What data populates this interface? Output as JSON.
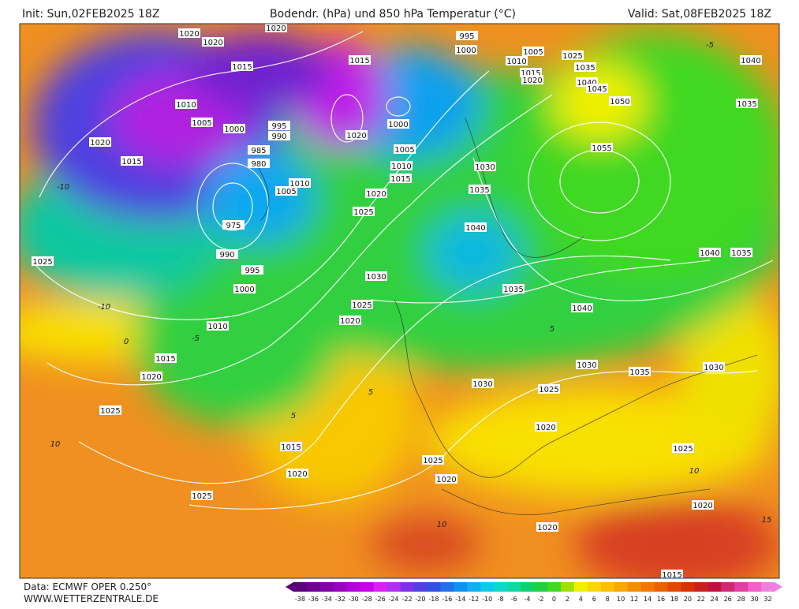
{
  "header": {
    "init": "Init: Sun,02FEB2025 18Z",
    "title": "Bodendr. (hPa) und 850 hPa Temperatur (°C)",
    "valid": "Valid: Sat,08FEB2025 18Z"
  },
  "footer": {
    "source": "Data: ECMWF OPER 0.250°",
    "site": "WWW.WETTERZENTRALE.DE"
  },
  "colorbar": {
    "ticks": [
      -38,
      -36,
      -34,
      -32,
      -30,
      -28,
      -26,
      -24,
      -22,
      -20,
      -18,
      -16,
      -14,
      -12,
      -10,
      -8,
      -6,
      -4,
      -2,
      0,
      2,
      4,
      6,
      8,
      10,
      12,
      14,
      16,
      18,
      20,
      22,
      24,
      26,
      28,
      30,
      32
    ],
    "colors": [
      "#5a007a",
      "#6d0090",
      "#8200a8",
      "#9a00c0",
      "#b400d8",
      "#c800e8",
      "#d820f0",
      "#b030f0",
      "#8030e8",
      "#5040e0",
      "#3050e0",
      "#2070e8",
      "#1090f0",
      "#10b0f0",
      "#10c8e8",
      "#10d8c8",
      "#10d8a0",
      "#10d070",
      "#20d040",
      "#40d820",
      "#a0e000",
      "#f0f000",
      "#f8d800",
      "#f8c000",
      "#f8a800",
      "#f09000",
      "#f07800",
      "#e86000",
      "#e04800",
      "#d83000",
      "#c82020",
      "#c01040",
      "#d02870",
      "#e040a0",
      "#f060c8",
      "#f080e0"
    ]
  },
  "isobar_labels": [
    "1020",
    "1020",
    "1020",
    "995",
    "1000",
    "1005",
    "1010",
    "1025",
    "1040",
    "1015",
    "1015",
    "1015",
    "1020",
    "1035",
    "1040",
    "1045",
    "1050",
    "1035",
    "1010",
    "1005",
    "1000",
    "995",
    "990",
    "1020",
    "1000",
    "1020",
    "985",
    "1005",
    "1055",
    "1015",
    "980",
    "1010",
    "1015",
    "1030",
    "1010",
    "1005",
    "1020",
    "1035",
    "1025",
    "975",
    "1040",
    "990",
    "1040",
    "1035",
    "1025",
    "995",
    "1030",
    "1000",
    "1035",
    "1025",
    "1040",
    "1010",
    "1020",
    "1015",
    "1030",
    "1035",
    "1030",
    "1020",
    "1030",
    "1025",
    "1025",
    "1020",
    "1015",
    "1025",
    "1025",
    "1020",
    "1020",
    "1025",
    "1020",
    "1020",
    "1015"
  ],
  "isotherm_labels": [
    "-10",
    "-10",
    "-5",
    "0",
    "5",
    "5",
    "10",
    "10",
    "-5",
    "10",
    "5",
    "15"
  ]
}
